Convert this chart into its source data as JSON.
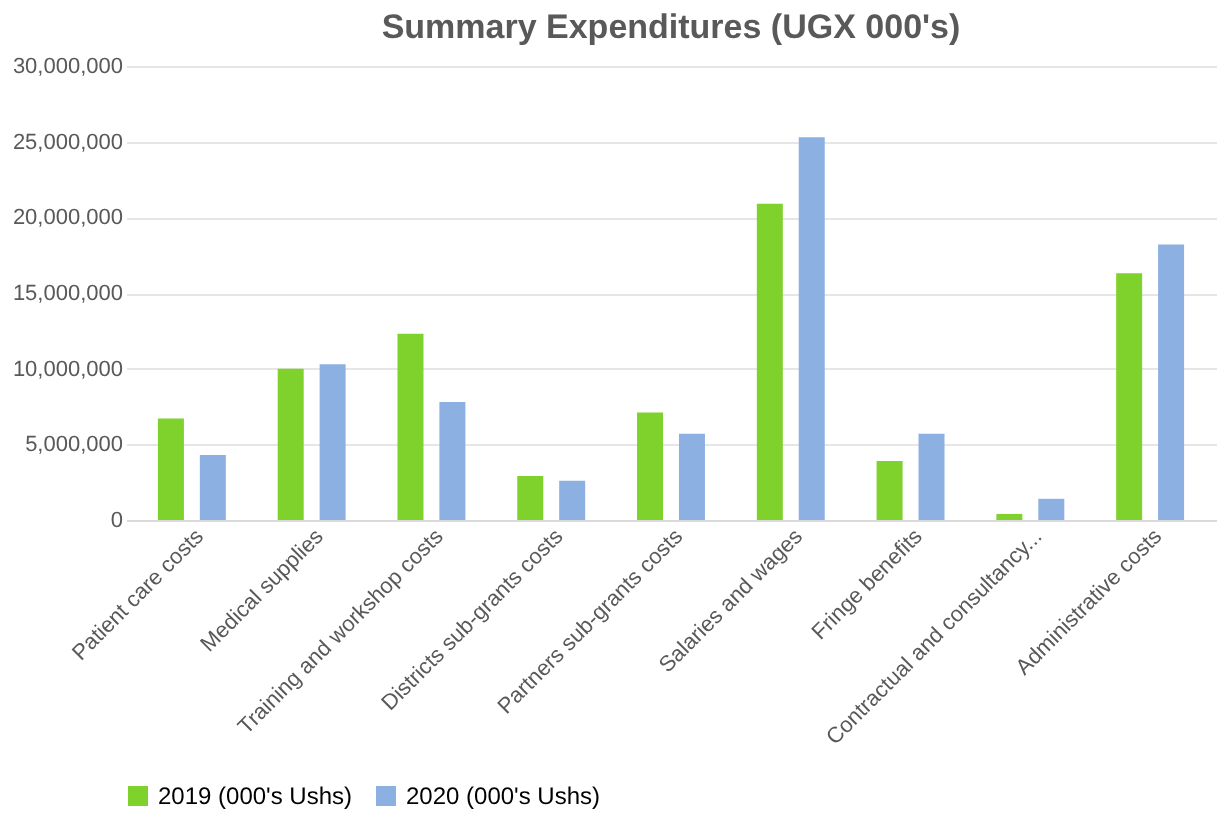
{
  "chart_data": {
    "type": "bar",
    "title": "Summary Expenditures (UGX 000's)",
    "categories": [
      "Patient care costs",
      "Medical supplies",
      "Training and workshop costs",
      "Districts sub-grants costs",
      "Partners sub-grants costs",
      "Salaries and wages",
      "Fringe benefits",
      "Contractual and consultancy...",
      "Administrative costs"
    ],
    "series": [
      {
        "name": "2019 (000's Ushs)",
        "color": "#7fd12c",
        "values": [
          6700000,
          10000000,
          12300000,
          2900000,
          7100000,
          20900000,
          3900000,
          400000,
          16300000
        ]
      },
      {
        "name": "2020 (000's Ushs)",
        "color": "#8db0e2",
        "values": [
          4300000,
          10300000,
          7800000,
          2600000,
          5700000,
          25300000,
          5700000,
          1400000,
          18200000
        ]
      }
    ],
    "ylim": [
      0,
      30000000
    ],
    "yticks": [
      0,
      {
        "value": 5000000,
        "label": "5,000,000"
      },
      {
        "value": 10000000,
        "label": "10,000,000"
      },
      {
        "value": 15000000,
        "label": "15,000,000"
      },
      {
        "value": 20000000,
        "label": "20,000,000"
      },
      {
        "value": 25000000,
        "label": "25,000,000"
      },
      {
        "value": 30000000,
        "label": "30,000,000"
      }
    ],
    "grid": "y",
    "legend": "bottom"
  }
}
